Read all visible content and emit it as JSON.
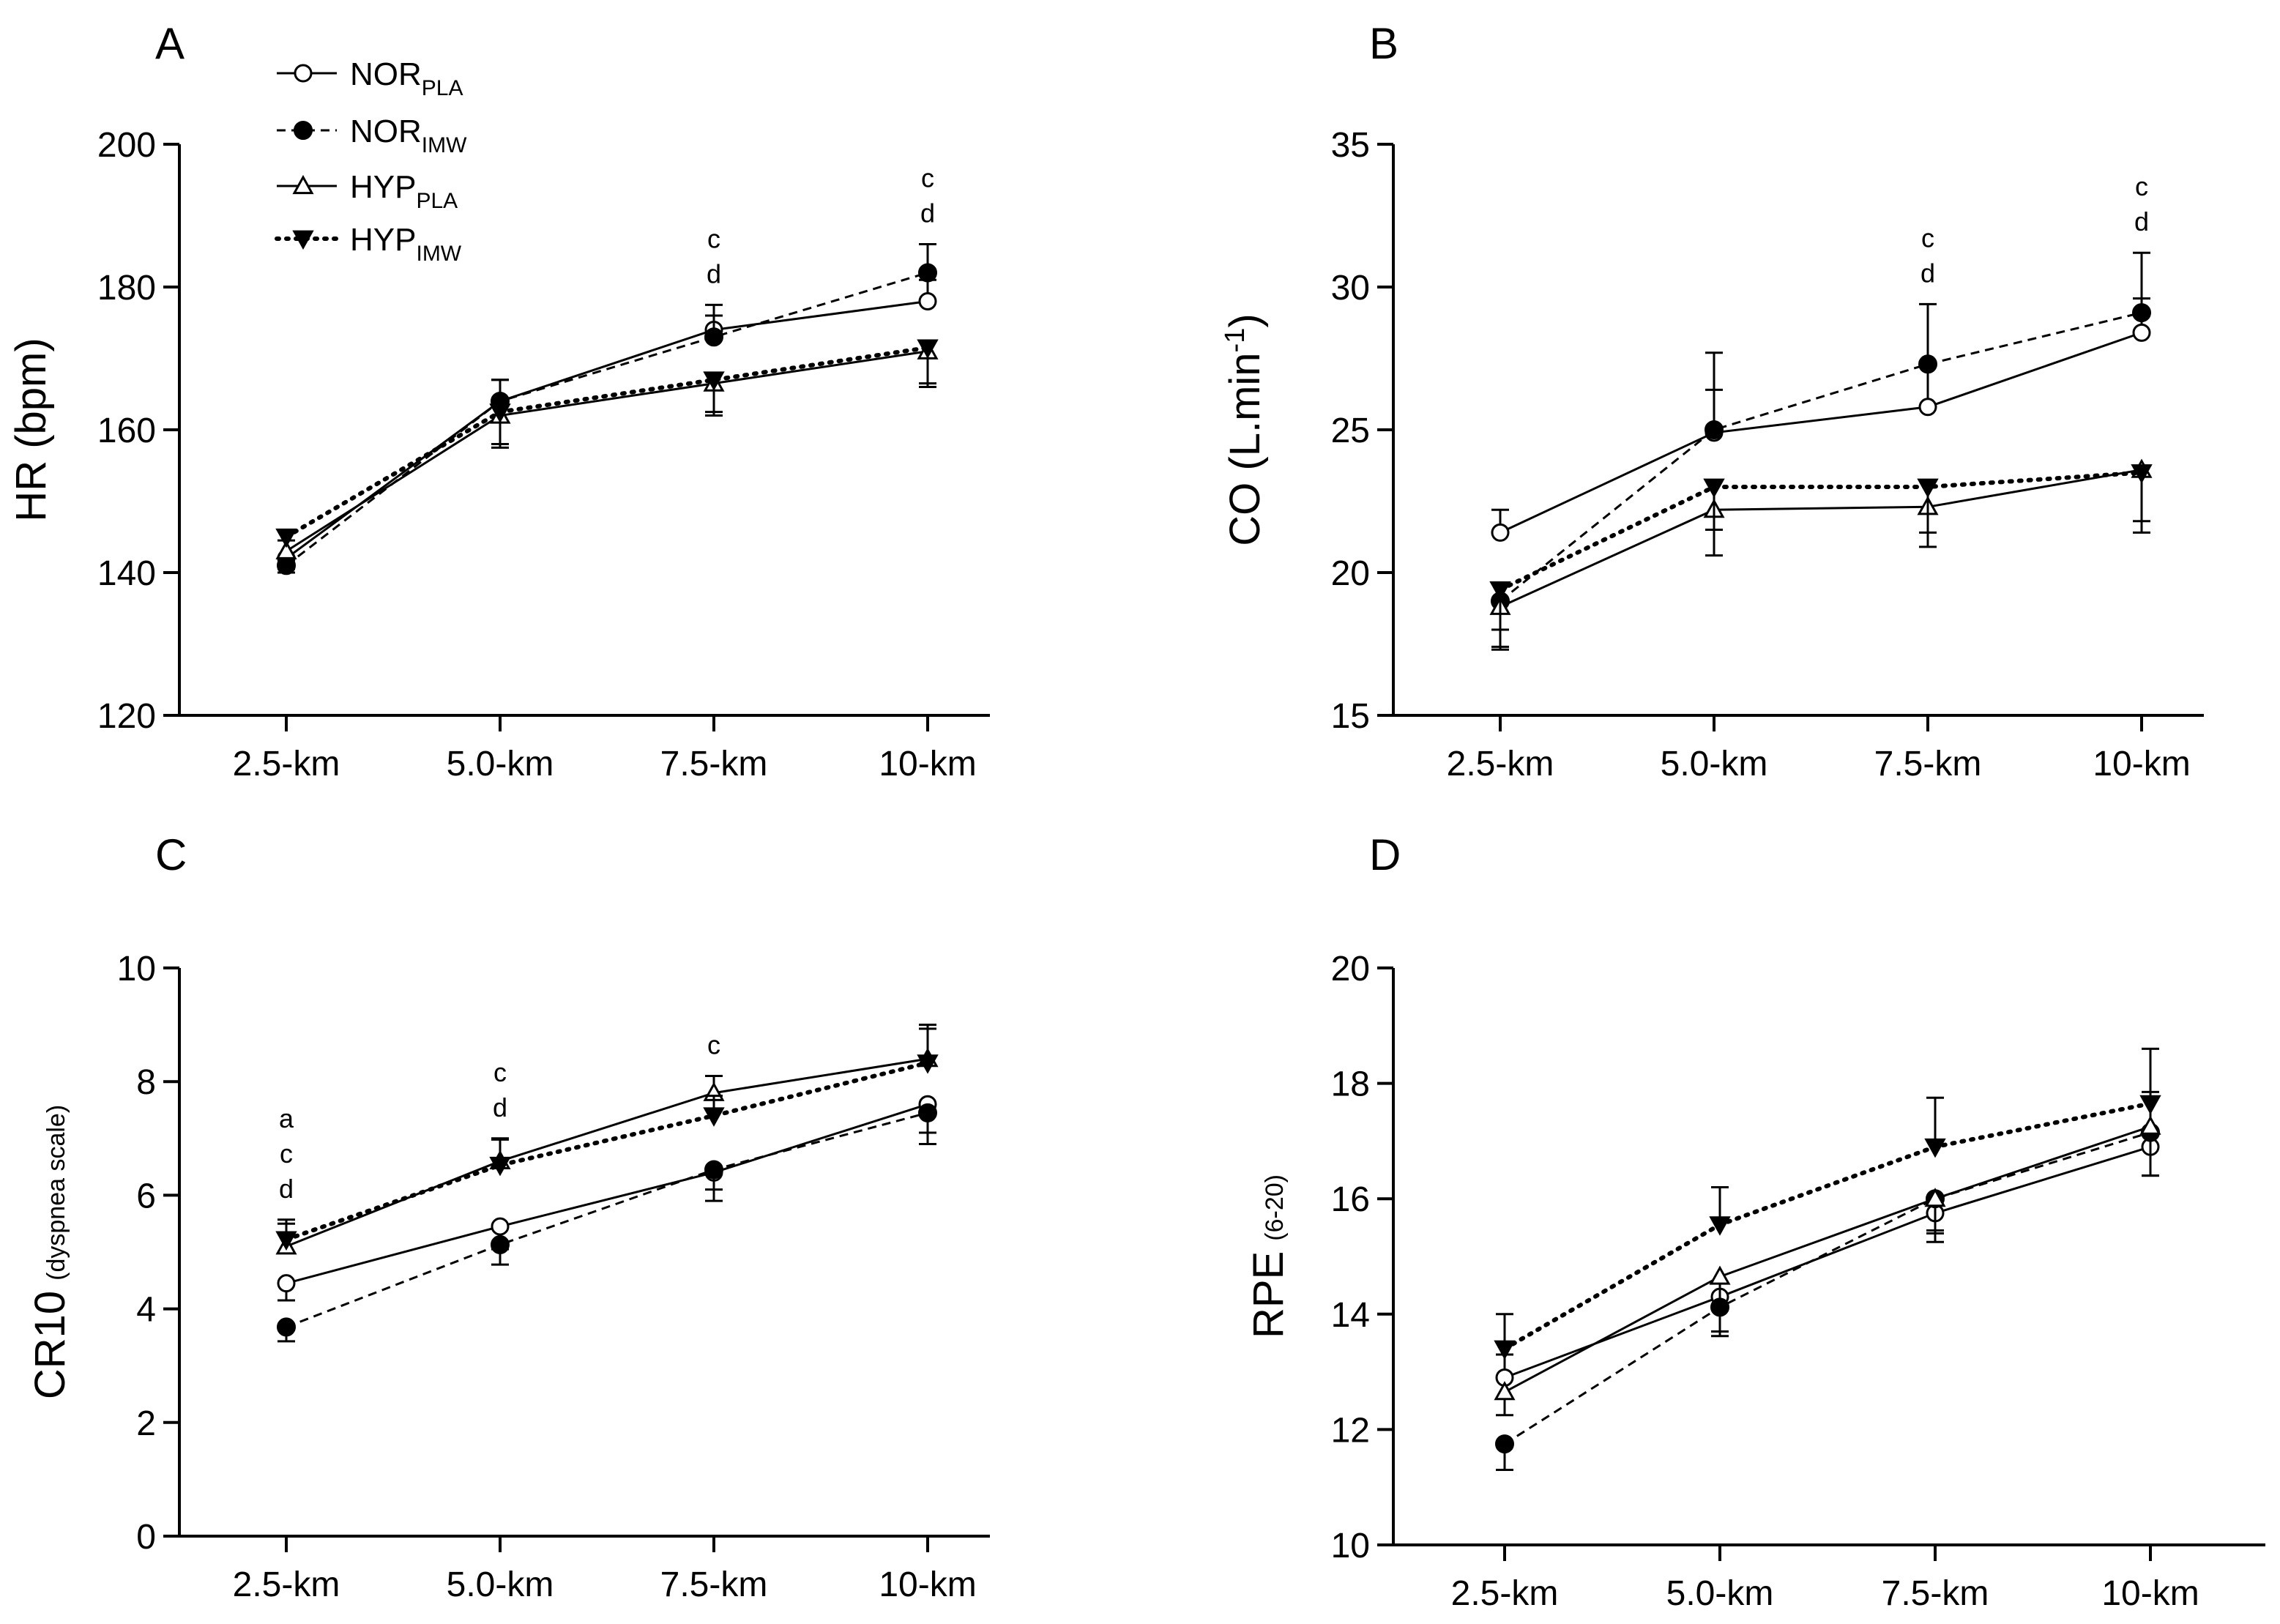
{
  "legend": {
    "entries": [
      {
        "key": "NOR_PLA",
        "base": "NOR",
        "sub": "PLA",
        "dash": "",
        "marker": "circle-open"
      },
      {
        "key": "NOR_IMW",
        "base": "NOR",
        "sub": "IMW",
        "dash": "12 8",
        "marker": "circle-filled"
      },
      {
        "key": "HYP_PLA",
        "base": "HYP",
        "sub": "PLA",
        "dash": "",
        "marker": "triangle-open"
      },
      {
        "key": "HYP_IMW",
        "base": "HYP",
        "sub": "IMW",
        "dash": "3 10",
        "marker": "triangle-down-filled"
      }
    ]
  },
  "chart_data": [
    {
      "panel": "A",
      "type": "line",
      "categories": [
        "2.5-km",
        "5.0-km",
        "7.5-km",
        "10-km"
      ],
      "ylabel": "HR (bpm)",
      "ylim": [
        120,
        200
      ],
      "yticks": [
        120,
        140,
        160,
        180,
        200
      ],
      "series": [
        {
          "name": "NOR_PLA",
          "values": [
            142,
            164,
            174,
            178
          ],
          "errors": [
            1.5,
            3,
            3.5,
            3
          ]
        },
        {
          "name": "NOR_IMW",
          "values": [
            141,
            164,
            173,
            182
          ],
          "errors": [
            1,
            3,
            3,
            4
          ]
        },
        {
          "name": "HYP_PLA",
          "values": [
            143,
            162,
            166.5,
            171
          ],
          "errors": [
            1.5,
            4.5,
            4.5,
            5
          ]
        },
        {
          "name": "HYP_IMW",
          "values": [
            145,
            162.5,
            167,
            171.5
          ],
          "errors": [
            1,
            4.5,
            4.5,
            5
          ]
        }
      ],
      "annotations": [
        {
          "category": "7.5-km",
          "lines": [
            "c",
            "d"
          ]
        },
        {
          "category": "10-km",
          "lines": [
            "c",
            "d"
          ]
        }
      ]
    },
    {
      "panel": "B",
      "type": "line",
      "categories": [
        "2.5-km",
        "5.0-km",
        "7.5-km",
        "10-km"
      ],
      "ylabel": "CO (L.min",
      "ylabel_sup": "-1",
      "ylabel_end": ")",
      "ylim": [
        15,
        35
      ],
      "yticks": [
        15,
        20,
        25,
        30,
        35
      ],
      "series": [
        {
          "name": "NOR_PLA",
          "values": [
            21.4,
            24.9,
            25.8,
            28.4
          ],
          "errors": [
            0.8,
            1.5,
            1.5,
            1.2
          ]
        },
        {
          "name": "NOR_IMW",
          "values": [
            19.0,
            25.0,
            27.3,
            29.1
          ],
          "errors": [
            1.6,
            2.7,
            2.1,
            2.1
          ]
        },
        {
          "name": "HYP_PLA",
          "values": [
            18.8,
            22.2,
            22.3,
            23.6
          ],
          "errors": [
            1.5,
            1.6,
            1.4,
            1.8
          ]
        },
        {
          "name": "HYP_IMW",
          "values": [
            19.4,
            23.0,
            23.0,
            23.5
          ],
          "errors": [
            1.4,
            1.5,
            1.6,
            2.1
          ]
        }
      ],
      "annotations": [
        {
          "category": "7.5-km",
          "lines": [
            "c",
            "d"
          ]
        },
        {
          "category": "10-km",
          "lines": [
            "c",
            "d"
          ]
        }
      ]
    },
    {
      "panel": "C",
      "type": "line",
      "categories": [
        "2.5-km",
        "5.0-km",
        "7.5-km",
        "10-km"
      ],
      "ylabel": "CR10",
      "ylabel_small": "(dyspnea scale)",
      "ylim": [
        0,
        10
      ],
      "yticks": [
        0,
        2,
        4,
        6,
        8,
        10
      ],
      "series": [
        {
          "name": "NOR_PLA",
          "values": [
            4.45,
            5.45,
            6.4,
            7.6
          ],
          "errors": [
            0.3,
            0.4,
            0.3,
            0.5
          ]
        },
        {
          "name": "NOR_IMW",
          "values": [
            3.68,
            5.13,
            6.45,
            7.45
          ],
          "errors": [
            0.25,
            0.35,
            0.55,
            0.55
          ]
        },
        {
          "name": "HYP_PLA",
          "values": [
            5.1,
            6.6,
            7.8,
            8.4
          ],
          "errors": [
            0.4,
            0.4,
            0.3,
            0.6
          ]
        },
        {
          "name": "HYP_IMW",
          "values": [
            5.22,
            6.53,
            7.4,
            8.33
          ],
          "errors": [
            0.35,
            0.45,
            0.35,
            0.6
          ]
        }
      ],
      "annotations": [
        {
          "category": "2.5-km",
          "lines": [
            "a",
            "c",
            "d"
          ]
        },
        {
          "category": "5.0-km",
          "lines": [
            "c",
            "d"
          ]
        },
        {
          "category": "7.5-km",
          "lines": [
            "c"
          ]
        }
      ]
    },
    {
      "panel": "D",
      "type": "line",
      "categories": [
        "2.5-km",
        "5.0-km",
        "7.5-km",
        "10-km"
      ],
      "ylabel": "RPE",
      "ylabel_small": "(6-20)",
      "ylim": [
        10,
        20
      ],
      "yticks": [
        10,
        12,
        14,
        16,
        18,
        20
      ],
      "series": [
        {
          "name": "NOR_PLA",
          "values": [
            12.9,
            14.3,
            15.75,
            16.9
          ],
          "errors": [
            0.4,
            0.6,
            0.5,
            0.5
          ]
        },
        {
          "name": "NOR_IMW",
          "values": [
            11.75,
            14.12,
            16.0,
            17.15
          ],
          "errors": [
            0.45,
            0.5,
            0.6,
            0.75
          ]
        },
        {
          "name": "HYP_PLA",
          "values": [
            12.65,
            14.65,
            16.0,
            17.25
          ],
          "errors": [
            0.4,
            0.5,
            0.55,
            0.6
          ]
        },
        {
          "name": "HYP_IMW",
          "values": [
            13.4,
            15.55,
            16.9,
            17.65
          ],
          "errors": [
            0.6,
            0.65,
            0.85,
            0.95
          ]
        }
      ],
      "annotations": []
    }
  ]
}
